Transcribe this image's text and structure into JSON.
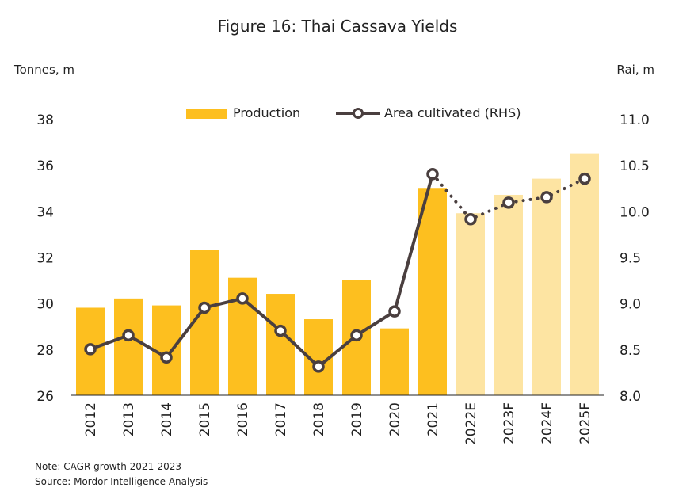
{
  "chart_data": {
    "type": "bar",
    "title": "Figure 16: Thai Cassava Yields",
    "left_axis_label": "Tonnes, m",
    "right_axis_label": "Rai, m",
    "categories": [
      "2012",
      "2013",
      "2014",
      "2015",
      "2016",
      "2017",
      "2018",
      "2019",
      "2020",
      "2021",
      "2022E",
      "2023F",
      "2024F",
      "2025F"
    ],
    "left_ylim": [
      26,
      38
    ],
    "left_ticks": [
      "26",
      "28",
      "30",
      "32",
      "34",
      "36",
      "38"
    ],
    "right_ylim": [
      8.0,
      11.0
    ],
    "right_ticks": [
      "8.0",
      "8.5",
      "9.0",
      "9.5",
      "10.0",
      "10.5",
      "11.0"
    ],
    "series": [
      {
        "name": "Production",
        "kind": "bar",
        "axis": "left",
        "values": [
          29.8,
          30.2,
          29.9,
          32.3,
          31.1,
          30.4,
          29.3,
          31.0,
          28.9,
          35.0,
          33.9,
          34.7,
          35.4,
          36.5
        ],
        "color": "#fdbf1f",
        "forecast_color": "#fde4a2",
        "forecast_from_index": 10
      },
      {
        "name": "Area cultivated (RHS)",
        "kind": "line",
        "axis": "right",
        "values": [
          8.5,
          8.65,
          8.41,
          8.95,
          9.05,
          8.7,
          8.31,
          8.65,
          8.91,
          10.4,
          9.91,
          10.09,
          10.15,
          10.35
        ],
        "color": "#4a3f3f",
        "dotted_from_index": 9
      }
    ],
    "legend_position": "top-center",
    "grid": false
  },
  "notes": [
    "Note: CAGR growth 2021-2023",
    "Source: Mordor Intelligence Analysis"
  ]
}
